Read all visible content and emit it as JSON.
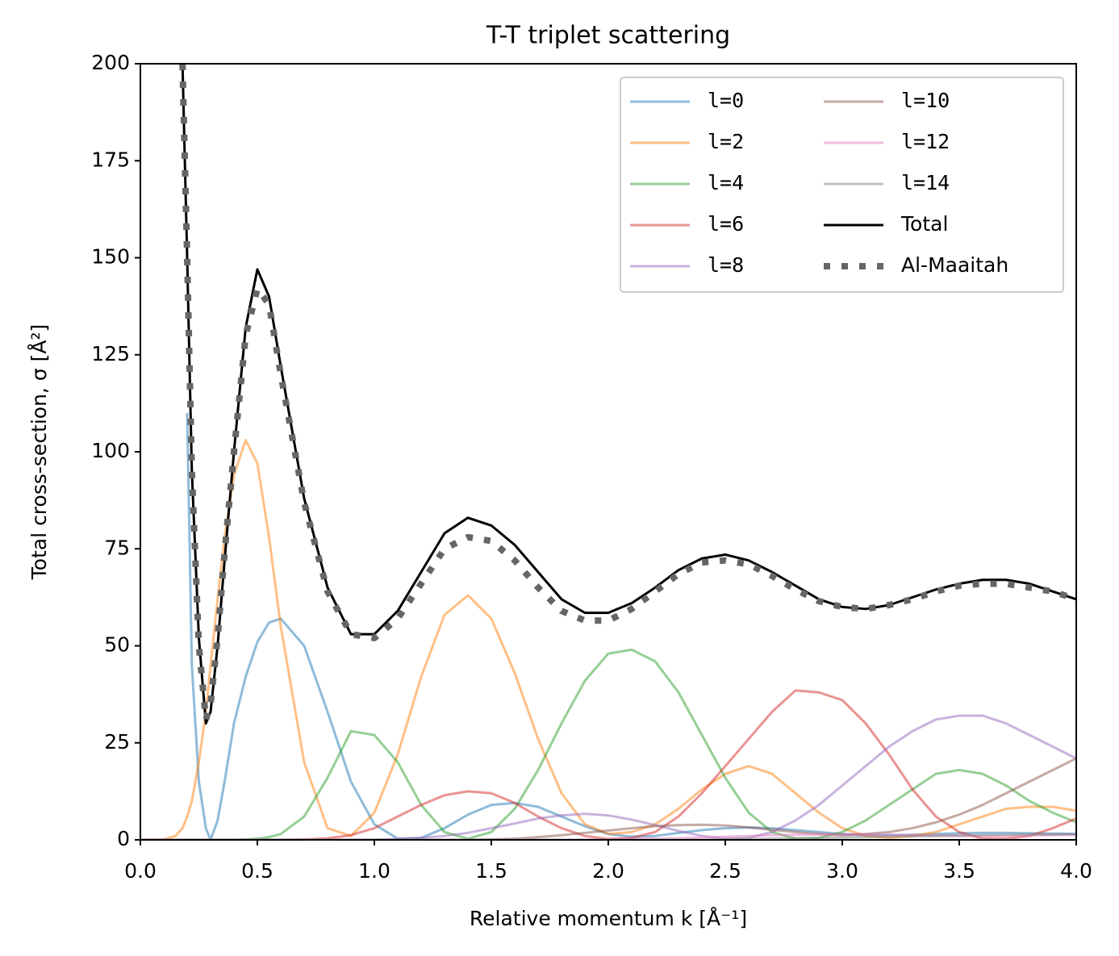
{
  "chart_data": {
    "type": "line",
    "title": "T-T triplet scattering",
    "xlabel": "Relative momentum k [Å⁻¹]",
    "ylabel": "Total cross-section, σ [Å²]",
    "x": [
      0,
      0.1,
      0.15,
      0.18,
      0.2,
      0.22,
      0.25,
      0.28,
      0.3,
      0.33,
      0.36,
      0.4,
      0.45,
      0.5,
      0.55,
      0.6,
      0.7,
      0.8,
      0.9,
      1.0,
      1.1,
      1.2,
      1.3,
      1.4,
      1.5,
      1.6,
      1.7,
      1.8,
      1.9,
      2.0,
      2.1,
      2.2,
      2.3,
      2.4,
      2.5,
      2.6,
      2.7,
      2.8,
      2.9,
      3.0,
      3.1,
      3.2,
      3.3,
      3.4,
      3.5,
      3.6,
      3.7,
      3.8,
      3.9,
      4.0
    ],
    "series": [
      {
        "name": "l=0",
        "color": "#1f77b4",
        "alpha": 0.5,
        "label_font": "monospace",
        "values": [
          null,
          null,
          null,
          null,
          110,
          45,
          15,
          3,
          0,
          5,
          15,
          30,
          42,
          51,
          56,
          57,
          50,
          33,
          15,
          4,
          0.3,
          0.5,
          3,
          6.5,
          9,
          9.5,
          8.5,
          6,
          3.5,
          1.5,
          0.8,
          1,
          1.8,
          2.5,
          3,
          3.2,
          3,
          2.5,
          2,
          1.5,
          1.2,
          1.2,
          1.3,
          1.5,
          1.7,
          1.8,
          1.8,
          1.7,
          1.6,
          1.5
        ]
      },
      {
        "name": "l=2",
        "color": "#ff7f0e",
        "alpha": 0.5,
        "label_font": "monospace",
        "values": [
          0,
          0.1,
          1,
          3,
          6,
          10,
          20,
          33,
          45,
          62,
          78,
          94,
          103,
          97,
          78,
          55,
          20,
          3,
          1,
          7,
          22,
          42,
          58,
          63,
          57,
          43,
          26,
          12,
          4,
          1.5,
          2,
          4,
          8,
          13,
          17,
          19,
          17,
          12,
          7,
          3,
          1,
          0.5,
          1,
          2,
          4,
          6,
          8,
          8.5,
          8.5,
          7.5
        ]
      },
      {
        "name": "l=4",
        "color": "#2ca02c",
        "alpha": 0.5,
        "label_font": "monospace",
        "values": [
          0,
          0,
          0,
          0,
          0,
          0,
          0,
          0,
          0,
          0,
          0,
          0,
          0.1,
          0.3,
          0.7,
          1.5,
          6,
          16,
          28,
          27,
          20,
          9,
          2,
          0.3,
          2,
          8,
          18,
          30,
          41,
          48,
          49,
          46,
          38,
          27,
          16,
          7,
          2,
          0.3,
          0.5,
          2,
          5,
          9,
          13,
          17,
          18,
          17,
          14,
          10,
          7,
          4.5
        ]
      },
      {
        "name": "l=6",
        "color": "#d62728",
        "alpha": 0.5,
        "label_font": "monospace",
        "values": [
          0,
          0,
          0,
          0,
          0,
          0,
          0,
          0,
          0,
          0,
          0,
          0,
          0,
          0,
          0,
          0,
          0.1,
          0.4,
          1.2,
          3,
          6,
          9,
          11.5,
          12.5,
          12,
          9.5,
          6,
          3,
          1,
          0.2,
          0.5,
          2,
          6,
          12,
          19,
          26,
          33,
          38.5,
          38,
          36,
          30,
          22,
          13,
          6,
          2,
          0.3,
          0.3,
          1,
          3,
          5.5
        ]
      },
      {
        "name": "l=8",
        "color": "#9467bd",
        "alpha": 0.5,
        "label_font": "monospace",
        "values": [
          0,
          0,
          0,
          0,
          0,
          0,
          0,
          0,
          0,
          0,
          0,
          0,
          0,
          0,
          0,
          0,
          0,
          0,
          0,
          0,
          0.2,
          0.5,
          1,
          1.8,
          3,
          4.2,
          5.5,
          6.3,
          6.7,
          6.3,
          5.2,
          3.8,
          2.3,
          1,
          0.3,
          0.5,
          2,
          5,
          9,
          14,
          19,
          24,
          28,
          31,
          32,
          32,
          30,
          27,
          24,
          21
        ]
      },
      {
        "name": "l=10",
        "color": "#8c564b",
        "alpha": 0.5,
        "label_font": "monospace",
        "values": [
          0,
          0,
          0,
          0,
          0,
          0,
          0,
          0,
          0,
          0,
          0,
          0,
          0,
          0,
          0,
          0,
          0,
          0,
          0,
          0,
          0,
          0,
          0,
          0,
          0.1,
          0.3,
          0.7,
          1.2,
          1.8,
          2.4,
          3,
          3.5,
          3.8,
          3.9,
          3.7,
          3.2,
          2.6,
          2,
          1.5,
          1.2,
          1.5,
          2,
          3,
          4.5,
          6.5,
          9,
          12,
          15,
          18,
          21
        ]
      },
      {
        "name": "l=12",
        "color": "#e377c2",
        "alpha": 0.5,
        "label_font": "monospace",
        "values": [
          0,
          0,
          0,
          0,
          0,
          0,
          0,
          0,
          0,
          0,
          0,
          0,
          0,
          0,
          0,
          0,
          0,
          0,
          0,
          0,
          0,
          0,
          0,
          0,
          0,
          0,
          0,
          0,
          0,
          0.1,
          0.2,
          0.3,
          0.4,
          0.6,
          0.8,
          1,
          1.2,
          1.3,
          1.4,
          1.4,
          1.4,
          1.3,
          1.2,
          1.1,
          1,
          1,
          1,
          1.1,
          1.2,
          1.3
        ]
      },
      {
        "name": "l=14",
        "color": "#7f7f7f",
        "alpha": 0.5,
        "label_font": "monospace",
        "values": [
          0,
          0,
          0,
          0,
          0,
          0,
          0,
          0,
          0,
          0,
          0,
          0,
          0,
          0,
          0,
          0,
          0,
          0,
          0,
          0,
          0,
          0,
          0,
          0,
          0,
          0,
          0,
          0,
          0,
          0,
          0,
          0,
          0,
          0,
          0.1,
          0.2,
          0.3,
          0.4,
          0.5,
          0.6,
          0.7,
          0.8,
          0.9,
          1,
          1.1,
          1.2,
          1.3,
          1.4,
          1.4,
          1.5
        ]
      },
      {
        "name": "Total",
        "color": "#000000",
        "values": [
          null,
          null,
          null,
          200,
          150,
          95,
          52,
          30,
          33,
          50,
          72,
          100,
          132,
          147,
          140,
          122,
          88,
          65,
          53,
          53,
          59,
          69,
          79,
          83,
          81,
          76,
          69,
          62,
          58.5,
          58.5,
          61,
          65,
          69.5,
          72.5,
          73.5,
          72,
          69,
          65.5,
          62,
          60,
          59.5,
          60.5,
          62.5,
          64.5,
          66,
          67,
          67,
          66,
          64,
          62
        ]
      },
      {
        "name": "Al-Maaitah",
        "color": "#666666",
        "linestyle": "dotted",
        "values": [
          null,
          null,
          null,
          200,
          150,
          95,
          50,
          31,
          35,
          52,
          74,
          100,
          130,
          142,
          138,
          120,
          87,
          64,
          53,
          52,
          57,
          66,
          75,
          78,
          77,
          72,
          65,
          59,
          56.5,
          56.5,
          59.5,
          64,
          68.5,
          71.5,
          72,
          71,
          68,
          64.5,
          61.5,
          60,
          59.5,
          60.5,
          62,
          64,
          65.5,
          66,
          66,
          65,
          64,
          62
        ]
      }
    ],
    "xlim": [
      0,
      4
    ],
    "ylim": [
      0,
      200
    ],
    "xticks": [
      {
        "value": 0,
        "label": "0.0"
      },
      0.5,
      {
        "value": 1,
        "label": "1.0"
      },
      1.5,
      {
        "value": 2,
        "label": "2.0"
      },
      2.5,
      {
        "value": 3,
        "label": "3.0"
      },
      3.5,
      {
        "value": 4,
        "label": "4.0"
      }
    ],
    "yticks": [
      0,
      25,
      50,
      75,
      100,
      125,
      150,
      175,
      200
    ],
    "legend_loc": "upper right",
    "legend_ncol": 2
  }
}
